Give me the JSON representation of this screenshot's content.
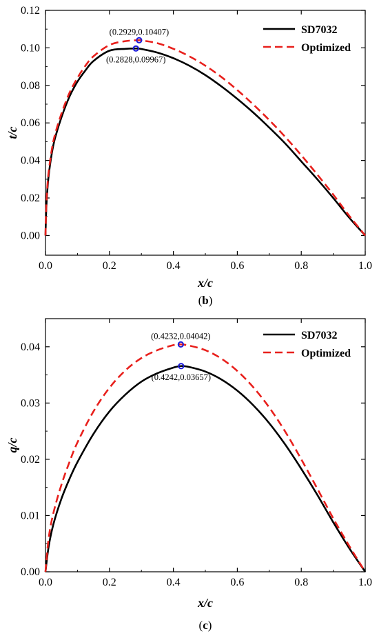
{
  "chart_data": [
    {
      "type": "line",
      "xlabel": "x/c",
      "ylabel": "t/c",
      "caption_open": "(",
      "caption_letter": "b",
      "caption_close": ")",
      "xlim": [
        0,
        1.0
      ],
      "ylim": [
        0,
        0.12
      ],
      "xticks": [
        "0.0",
        "0.2",
        "0.4",
        "0.6",
        "0.8",
        "1.0"
      ],
      "xtick_values": [
        0,
        0.2,
        0.4,
        0.6,
        0.8,
        1.0
      ],
      "yticks": [
        "0.00",
        "0.02",
        "0.04",
        "0.06",
        "0.08",
        "0.10",
        "0.12"
      ],
      "ytick_values": [
        0,
        0.02,
        0.04,
        0.06,
        0.08,
        0.1,
        0.12
      ],
      "legend_position": "top-right",
      "series": [
        {
          "name": "SD7032",
          "color": "#000000",
          "dash": "solid",
          "x": [
            0,
            0.002,
            0.005,
            0.01,
            0.02,
            0.03,
            0.05,
            0.075,
            0.1,
            0.125,
            0.15,
            0.2,
            0.25,
            0.2828,
            0.3,
            0.35,
            0.4,
            0.45,
            0.5,
            0.55,
            0.6,
            0.65,
            0.7,
            0.75,
            0.8,
            0.85,
            0.9,
            0.95,
            1.0
          ],
          "y": [
            0,
            0.012,
            0.022,
            0.032,
            0.044,
            0.052,
            0.063,
            0.074,
            0.082,
            0.088,
            0.093,
            0.0985,
            0.0995,
            0.09967,
            0.0994,
            0.0975,
            0.0945,
            0.0905,
            0.0855,
            0.0795,
            0.0728,
            0.0655,
            0.0575,
            0.049,
            0.0395,
            0.03,
            0.02,
            0.0095,
            0.0
          ]
        },
        {
          "name": "Optimized",
          "color": "#e8201c",
          "dash": "dashed",
          "x": [
            0,
            0.002,
            0.005,
            0.01,
            0.02,
            0.03,
            0.05,
            0.075,
            0.1,
            0.125,
            0.15,
            0.2,
            0.25,
            0.2929,
            0.3,
            0.35,
            0.4,
            0.45,
            0.5,
            0.55,
            0.6,
            0.65,
            0.7,
            0.75,
            0.8,
            0.85,
            0.9,
            0.95,
            1.0
          ],
          "y": [
            0,
            0.013,
            0.024,
            0.034,
            0.046,
            0.054,
            0.065,
            0.076,
            0.084,
            0.0905,
            0.0955,
            0.1015,
            0.1036,
            0.10407,
            0.104,
            0.1025,
            0.0995,
            0.0955,
            0.0905,
            0.0845,
            0.0775,
            0.0698,
            0.0615,
            0.0525,
            0.0428,
            0.0325,
            0.0218,
            0.0105,
            0.0
          ]
        }
      ],
      "annotations": [
        {
          "text": "(0.2929,0.10407)",
          "x": 0.2929,
          "y": 0.10407,
          "placement": "above"
        },
        {
          "text": "(0.2828,0.09967)",
          "x": 0.2828,
          "y": 0.09967,
          "placement": "below"
        }
      ]
    },
    {
      "type": "line",
      "xlabel": "x/c",
      "ylabel": "q/c",
      "caption_open": "(",
      "caption_letter": "c",
      "caption_close": ")",
      "xlim": [
        0,
        1.0
      ],
      "ylim": [
        0,
        0.045
      ],
      "xticks": [
        "0.0",
        "0.2",
        "0.4",
        "0.6",
        "0.8",
        "1.0"
      ],
      "xtick_values": [
        0,
        0.2,
        0.4,
        0.6,
        0.8,
        1.0
      ],
      "yticks": [
        "0.00",
        "0.01",
        "0.02",
        "0.03",
        "0.04"
      ],
      "ytick_values": [
        0,
        0.01,
        0.02,
        0.03,
        0.04
      ],
      "legend_position": "top-right",
      "series": [
        {
          "name": "SD7032",
          "color": "#000000",
          "dash": "solid",
          "x": [
            0,
            0.01,
            0.025,
            0.05,
            0.075,
            0.1,
            0.15,
            0.2,
            0.25,
            0.3,
            0.35,
            0.4,
            0.4242,
            0.45,
            0.5,
            0.55,
            0.6,
            0.65,
            0.7,
            0.75,
            0.8,
            0.85,
            0.9,
            0.95,
            1.0
          ],
          "y": [
            0,
            0.0045,
            0.0085,
            0.013,
            0.0165,
            0.0195,
            0.0245,
            0.0285,
            0.0315,
            0.0338,
            0.0353,
            0.0363,
            0.03657,
            0.0364,
            0.0356,
            0.0342,
            0.0322,
            0.0296,
            0.0264,
            0.0226,
            0.0183,
            0.0137,
            0.0088,
            0.0042,
            0.0
          ]
        },
        {
          "name": "Optimized",
          "color": "#e8201c",
          "dash": "dashed",
          "x": [
            0,
            0.01,
            0.025,
            0.05,
            0.075,
            0.1,
            0.15,
            0.2,
            0.25,
            0.3,
            0.35,
            0.4,
            0.4232,
            0.45,
            0.5,
            0.55,
            0.6,
            0.65,
            0.7,
            0.75,
            0.8,
            0.85,
            0.9,
            0.95,
            1.0
          ],
          "y": [
            0,
            0.006,
            0.0105,
            0.0155,
            0.0195,
            0.023,
            0.0285,
            0.0327,
            0.0358,
            0.038,
            0.0394,
            0.0403,
            0.04042,
            0.0402,
            0.0394,
            0.0379,
            0.0357,
            0.0328,
            0.0292,
            0.0249,
            0.02,
            0.0148,
            0.0095,
            0.0046,
            0.0
          ]
        }
      ],
      "annotations": [
        {
          "text": "(0.4232,0.04042)",
          "x": 0.4232,
          "y": 0.04042,
          "placement": "above"
        },
        {
          "text": "(0.4242,0.03657)",
          "x": 0.4242,
          "y": 0.03657,
          "placement": "below"
        }
      ]
    }
  ]
}
